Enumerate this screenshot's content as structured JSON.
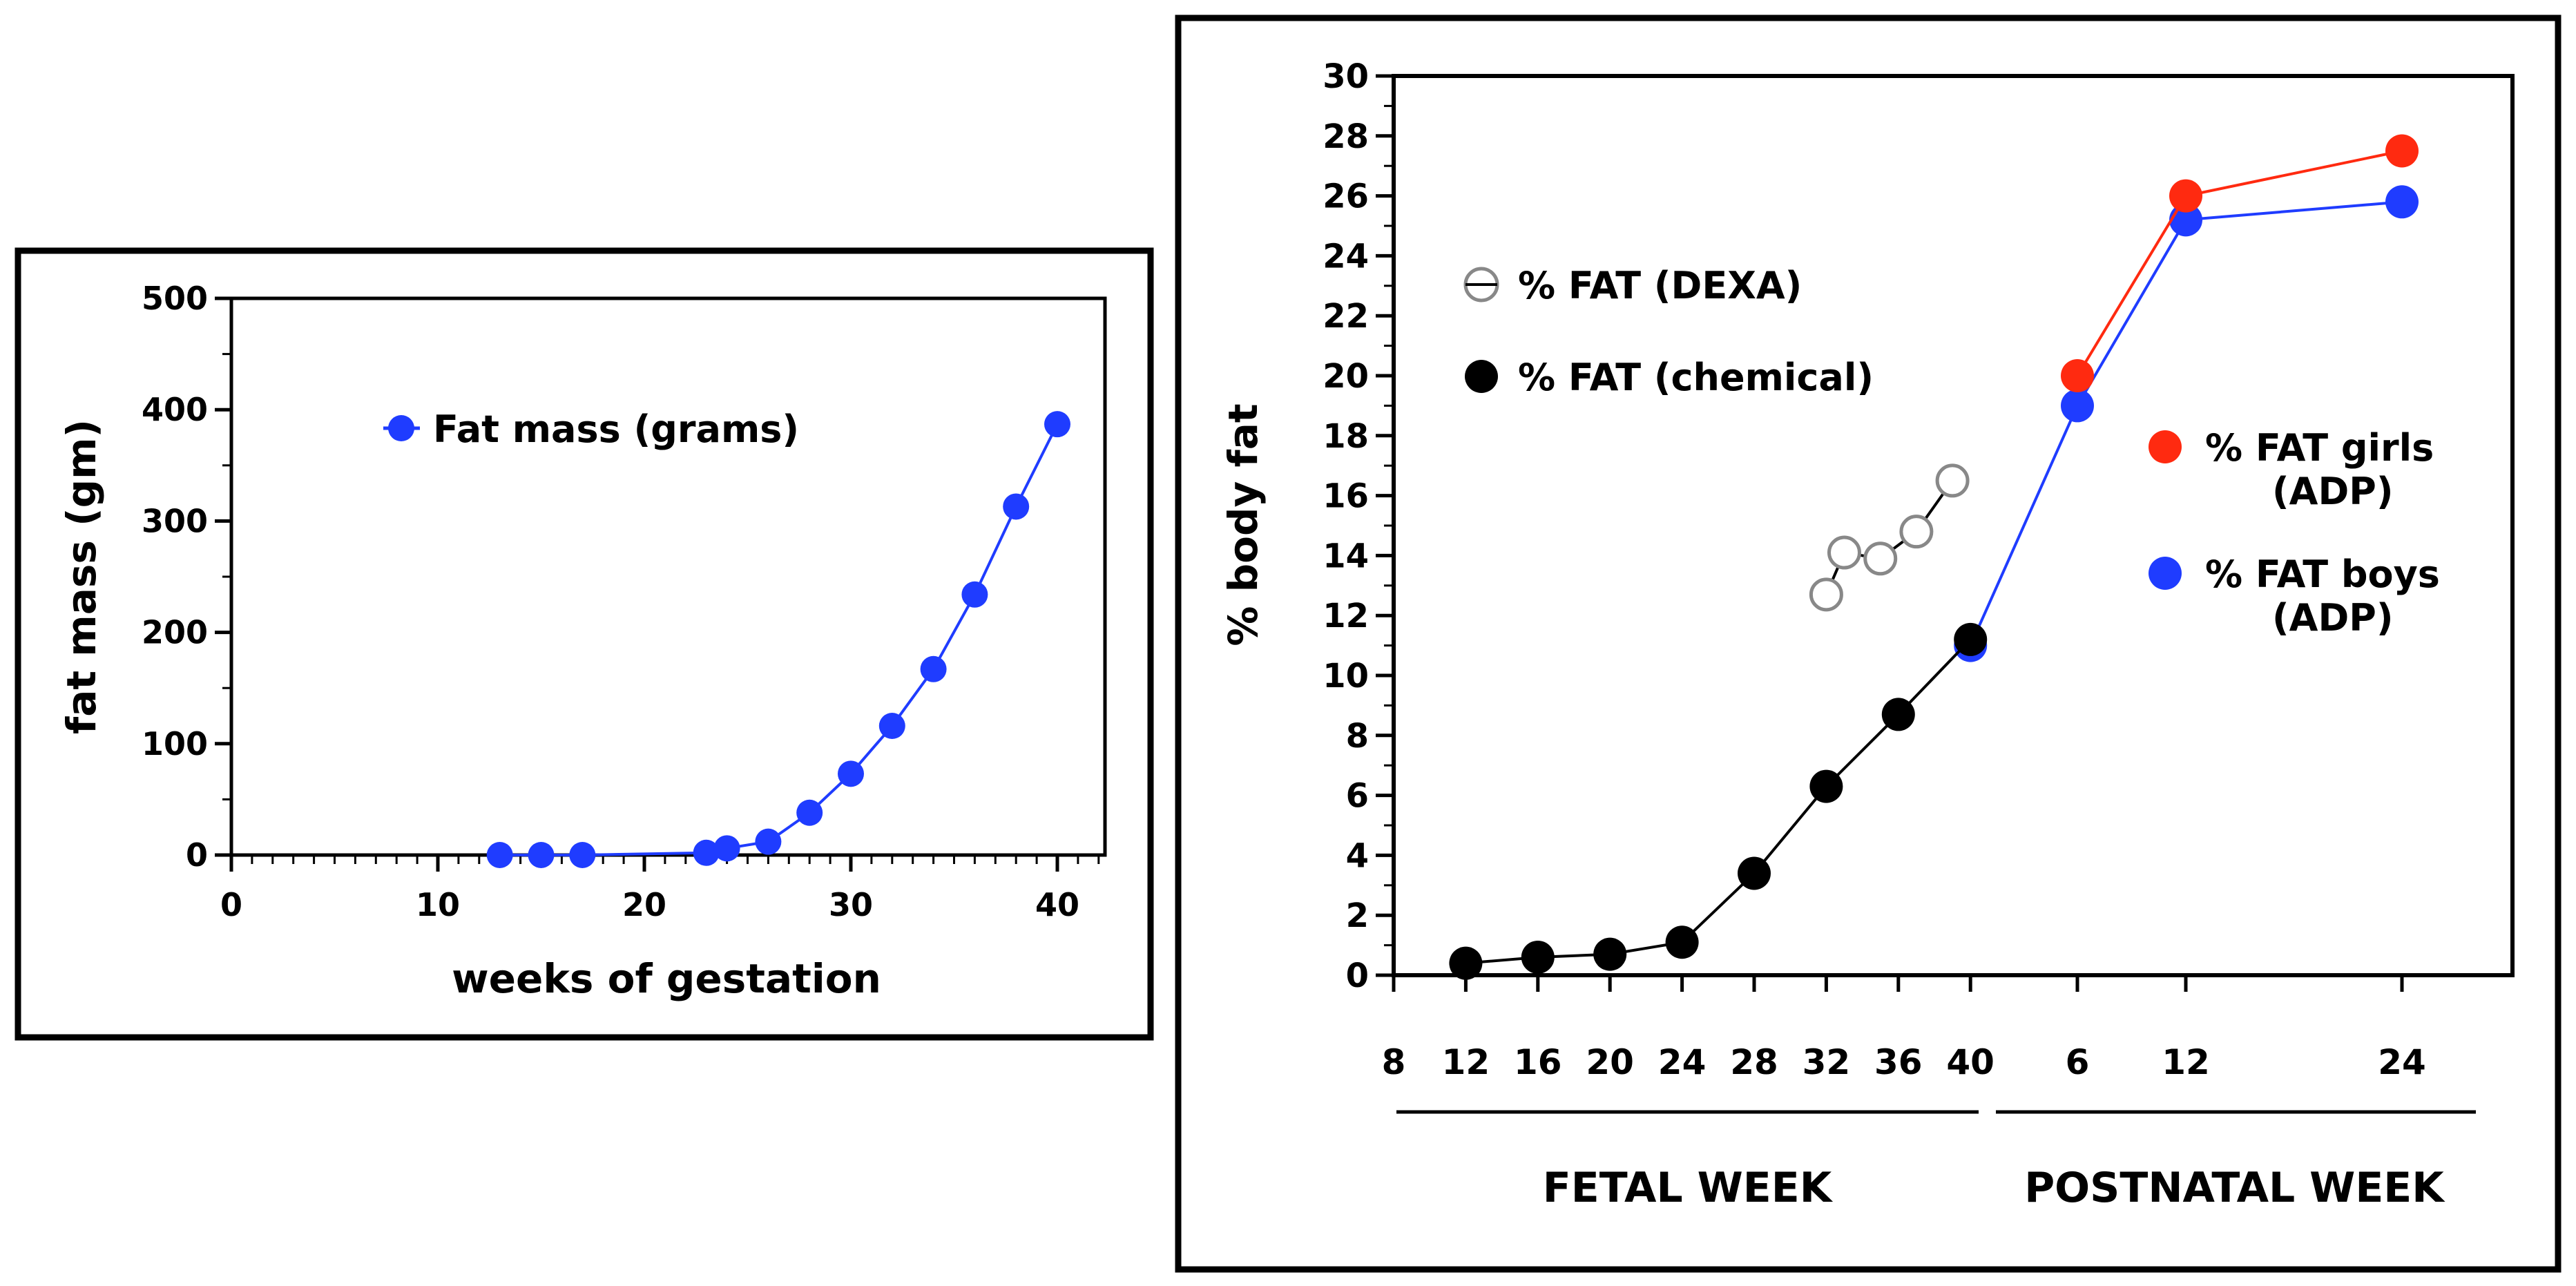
{
  "colors": {
    "blue": "#1f3cff",
    "red": "#ff2a10",
    "black": "#000000",
    "gray": "#888888"
  },
  "chart_data": [
    {
      "type": "line",
      "title": "",
      "xlabel": "weeks of gestation",
      "ylabel": "fat mass (gm)",
      "xlim": [
        0,
        42
      ],
      "ylim": [
        0,
        500
      ],
      "xticks": [
        0,
        10,
        20,
        30,
        40
      ],
      "yticks": [
        0,
        100,
        200,
        300,
        400,
        500
      ],
      "xtick_labels": [
        "0",
        "10",
        "20",
        "30",
        "40"
      ],
      "ytick_labels": [
        "0",
        "100",
        "200",
        "300",
        "400",
        "500"
      ],
      "legend_position": "top-center",
      "series": [
        {
          "name": "Fat mass (grams)",
          "color": "#1f3cff",
          "x": [
            13,
            15,
            17,
            23,
            24,
            26,
            28,
            30,
            32,
            34,
            36,
            38,
            40
          ],
          "y": [
            0,
            0,
            0,
            2,
            6,
            12,
            38,
            73,
            116,
            167,
            234,
            313,
            387
          ]
        }
      ]
    },
    {
      "type": "line",
      "title": "",
      "xlabel": "",
      "ylabel": "% body fat",
      "ylim": [
        0,
        30
      ],
      "yticks": [
        0,
        2,
        4,
        6,
        8,
        10,
        12,
        14,
        16,
        18,
        20,
        22,
        24,
        26,
        28,
        30
      ],
      "ytick_labels": [
        "0",
        "2",
        "4",
        "6",
        "8",
        "10",
        "12",
        "14",
        "16",
        "18",
        "20",
        "22",
        "24",
        "26",
        "28",
        "30"
      ],
      "x_segments": [
        {
          "name": "FETAL WEEK",
          "ticks": [
            "8",
            "12",
            "16",
            "20",
            "24",
            "28",
            "32",
            "36",
            "40"
          ]
        },
        {
          "name": "POSTNATAL WEEK",
          "ticks": [
            "6",
            "12",
            "24"
          ]
        }
      ],
      "legend_position": "top-left and right",
      "series": [
        {
          "name": "% FAT (chemical)",
          "color": "#000000",
          "marker": "filled",
          "x": [
            "fetal 12",
            "fetal 16",
            "fetal 20",
            "fetal 24",
            "fetal 28",
            "fetal 32",
            "fetal 36",
            "fetal 40"
          ],
          "y": [
            0.4,
            0.6,
            0.7,
            1.1,
            3.4,
            6.3,
            8.7,
            11.2
          ]
        },
        {
          "name": "% FAT (DEXA)",
          "color": "#888888",
          "marker": "open",
          "x": [
            "fetal 32",
            "fetal 33",
            "fetal 35",
            "fetal 37",
            "fetal 39"
          ],
          "y": [
            12.7,
            14.1,
            13.9,
            14.8,
            16.5
          ]
        },
        {
          "name": "% FAT girls (ADP)",
          "color": "#ff2a10",
          "marker": "filled",
          "x": [
            "postnatal 6",
            "postnatal 12",
            "postnatal 24"
          ],
          "y": [
            20.0,
            26.0,
            27.5
          ]
        },
        {
          "name": "% FAT boys (ADP)",
          "color": "#1f3cff",
          "marker": "filled",
          "x": [
            "fetal 40",
            "postnatal 6",
            "postnatal 12",
            "postnatal 24"
          ],
          "y": [
            11.0,
            19.0,
            25.2,
            25.8
          ]
        }
      ],
      "legend": {
        "dexa": "% FAT (DEXA)",
        "chemical": "% FAT (chemical)",
        "girls_line1": "% FAT girls",
        "girls_line2": "(ADP)",
        "boys_line1": "% FAT boys",
        "boys_line2": "(ADP)"
      }
    }
  ]
}
